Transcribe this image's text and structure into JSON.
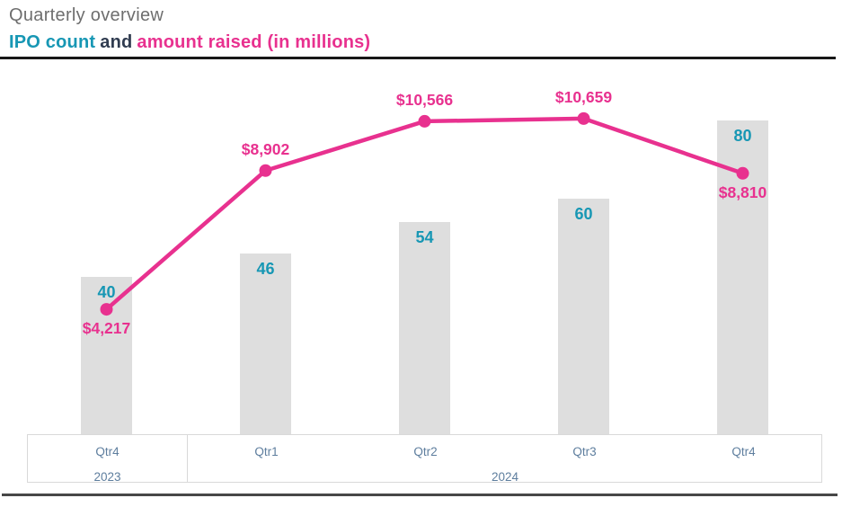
{
  "header": {
    "title": "Quarterly overview",
    "subtitle": {
      "part_teal": "IPO count",
      "part_and": "and",
      "part_pink": "amount raised (in millions)"
    }
  },
  "colors": {
    "teal": "#1797B4",
    "pink": "#E8318F",
    "navy": "#303C50",
    "title_gray": "#6E6E6E",
    "bar_fill": "#DEDEDE",
    "axis_label": "#5E7E9E",
    "axis_border": "#D9D9D9",
    "top_rule": "#171717",
    "bottom_rule": "#474747"
  },
  "chart_data": {
    "type": "combo",
    "title": "Quarterly overview",
    "subtitle": "IPO count and amount raised (in millions)",
    "categories": [
      "Qtr4",
      "Qtr1",
      "Qtr2",
      "Qtr3",
      "Qtr4"
    ],
    "year_groups": [
      {
        "label": "2023",
        "span": 1
      },
      {
        "label": "2024",
        "span": 4
      }
    ],
    "grid": false,
    "legend_position": "none",
    "series": [
      {
        "name": "IPO count",
        "type": "bar",
        "values": [
          40,
          46,
          54,
          60,
          80
        ],
        "ylim": [
          0,
          90
        ]
      },
      {
        "name": "amount raised (in millions)",
        "type": "line",
        "values": [
          4217,
          8902,
          10566,
          10659,
          8810
        ],
        "labels": [
          "$4,217",
          "$8,902",
          "$10,566",
          "$10,659",
          "$8,810"
        ],
        "label_positions": [
          "below",
          "above",
          "above",
          "above",
          "below"
        ],
        "ylim": [
          0,
          11930
        ]
      }
    ]
  }
}
